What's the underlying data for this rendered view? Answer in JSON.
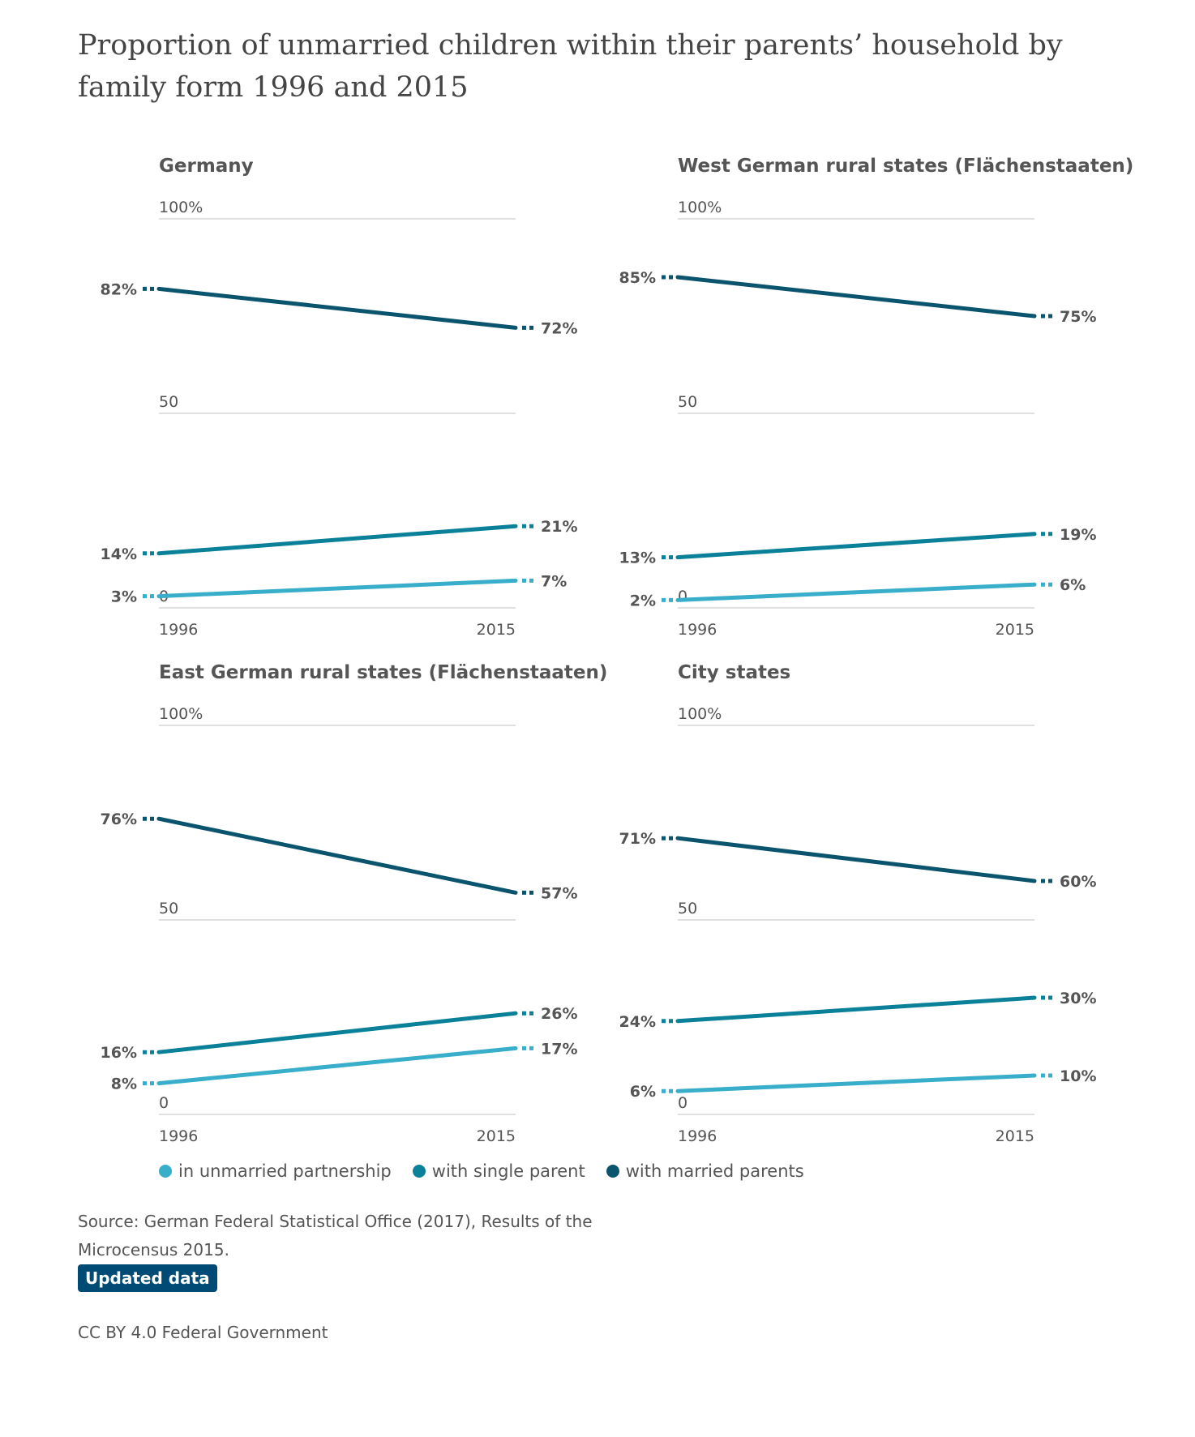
{
  "title": "Proportion of unmarried children within their parents’ household by family form 1996 and 2015",
  "colors": {
    "unmarried": "#38aecb",
    "single": "#0a8199",
    "married": "#0b546e",
    "grid": "#d6d6d6",
    "badge": "#004b76"
  },
  "legend": [
    {
      "label": "in unmarried partnership",
      "color": "#38aecb"
    },
    {
      "label": "with single parent",
      "color": "#0a8199"
    },
    {
      "label": "with married parents",
      "color": "#0b546e"
    }
  ],
  "source": "Source: German Federal Statistical Office (2017), Results of the Microcensus 2015.",
  "badge": "Updated data",
  "license": "CC BY 4.0 Federal Government",
  "chart_data": [
    {
      "type": "line",
      "title": "Germany",
      "x": [
        "1996",
        "2015"
      ],
      "y_ticks": [
        "0",
        "50",
        "100%"
      ],
      "ylim": [
        0,
        100
      ],
      "series": [
        {
          "name": "with married parents",
          "values": [
            82,
            72
          ],
          "labels": [
            "82%",
            "72%"
          ]
        },
        {
          "name": "with single parent",
          "values": [
            14,
            21
          ],
          "labels": [
            "14%",
            "21%"
          ]
        },
        {
          "name": "in unmarried partnership",
          "values": [
            3,
            7
          ],
          "labels": [
            "3%",
            "7%"
          ]
        }
      ]
    },
    {
      "type": "line",
      "title": "West German rural states (Flächenstaaten)",
      "x": [
        "1996",
        "2015"
      ],
      "y_ticks": [
        "0",
        "50",
        "100%"
      ],
      "ylim": [
        0,
        100
      ],
      "series": [
        {
          "name": "with married parents",
          "values": [
            85,
            75
          ],
          "labels": [
            "85%",
            "75%"
          ]
        },
        {
          "name": "with single parent",
          "values": [
            13,
            19
          ],
          "labels": [
            "13%",
            "19%"
          ]
        },
        {
          "name": "in unmarried partnership",
          "values": [
            2,
            6
          ],
          "labels": [
            "2%",
            "6%"
          ]
        }
      ]
    },
    {
      "type": "line",
      "title": "East German rural states (Flächenstaaten)",
      "x": [
        "1996",
        "2015"
      ],
      "y_ticks": [
        "0",
        "50",
        "100%"
      ],
      "ylim": [
        0,
        100
      ],
      "series": [
        {
          "name": "with married parents",
          "values": [
            76,
            57
          ],
          "labels": [
            "76%",
            "57%"
          ]
        },
        {
          "name": "with single parent",
          "values": [
            16,
            26
          ],
          "labels": [
            "16%",
            "26%"
          ]
        },
        {
          "name": "in unmarried partnership",
          "values": [
            8,
            17
          ],
          "labels": [
            "8%",
            "17%"
          ]
        }
      ]
    },
    {
      "type": "line",
      "title": "City states",
      "x": [
        "1996",
        "2015"
      ],
      "y_ticks": [
        "0",
        "50",
        "100%"
      ],
      "ylim": [
        0,
        100
      ],
      "series": [
        {
          "name": "with married parents",
          "values": [
            71,
            60
          ],
          "labels": [
            "71%",
            "60%"
          ]
        },
        {
          "name": "with single parent",
          "values": [
            24,
            30
          ],
          "labels": [
            "24%",
            "30%"
          ]
        },
        {
          "name": "in unmarried partnership",
          "values": [
            6,
            10
          ],
          "labels": [
            "6%",
            "10%"
          ]
        }
      ]
    }
  ]
}
